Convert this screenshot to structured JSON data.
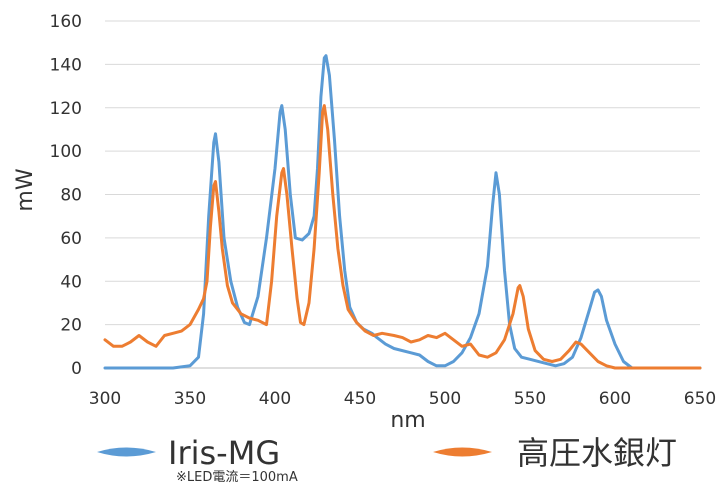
{
  "chart_data": {
    "type": "line",
    "xlabel": "nm",
    "ylabel": "mW",
    "xlim": [
      300,
      650
    ],
    "ylim": [
      0,
      160
    ],
    "x_ticks": [
      300,
      350,
      400,
      450,
      500,
      550,
      600,
      650
    ],
    "y_ticks": [
      0,
      20,
      40,
      60,
      80,
      100,
      120,
      140,
      160
    ],
    "grid": "horizontal",
    "legend_position": "bottom",
    "note": "※LED電流＝100mA",
    "series": [
      {
        "name": "Iris-MG",
        "color": "#5B9BD5",
        "points": [
          [
            300,
            0
          ],
          [
            340,
            0
          ],
          [
            350,
            1
          ],
          [
            355,
            5
          ],
          [
            358,
            25
          ],
          [
            361,
            70
          ],
          [
            364,
            104
          ],
          [
            365,
            108
          ],
          [
            367,
            95
          ],
          [
            370,
            60
          ],
          [
            374,
            40
          ],
          [
            378,
            28
          ],
          [
            382,
            21
          ],
          [
            385,
            20
          ],
          [
            390,
            33
          ],
          [
            395,
            60
          ],
          [
            400,
            92
          ],
          [
            403,
            118
          ],
          [
            404,
            121
          ],
          [
            406,
            110
          ],
          [
            409,
            80
          ],
          [
            412,
            60
          ],
          [
            416,
            59
          ],
          [
            420,
            62
          ],
          [
            423,
            70
          ],
          [
            425,
            92
          ],
          [
            427,
            125
          ],
          [
            429,
            143
          ],
          [
            430,
            144
          ],
          [
            432,
            135
          ],
          [
            435,
            105
          ],
          [
            438,
            70
          ],
          [
            441,
            45
          ],
          [
            444,
            28
          ],
          [
            448,
            21
          ],
          [
            452,
            18
          ],
          [
            457,
            16
          ],
          [
            460,
            14
          ],
          [
            465,
            11
          ],
          [
            470,
            9
          ],
          [
            480,
            7
          ],
          [
            485,
            6
          ],
          [
            490,
            3
          ],
          [
            495,
            1
          ],
          [
            500,
            1
          ],
          [
            505,
            3
          ],
          [
            510,
            7
          ],
          [
            515,
            14
          ],
          [
            520,
            25
          ],
          [
            525,
            47
          ],
          [
            528,
            75
          ],
          [
            530,
            90
          ],
          [
            532,
            80
          ],
          [
            535,
            45
          ],
          [
            538,
            20
          ],
          [
            541,
            9
          ],
          [
            545,
            5
          ],
          [
            550,
            4
          ],
          [
            560,
            2
          ],
          [
            565,
            1
          ],
          [
            570,
            2
          ],
          [
            575,
            5
          ],
          [
            580,
            14
          ],
          [
            585,
            27
          ],
          [
            588,
            35
          ],
          [
            590,
            36
          ],
          [
            592,
            33
          ],
          [
            595,
            22
          ],
          [
            600,
            11
          ],
          [
            605,
            3
          ],
          [
            610,
            0
          ],
          [
            650,
            0
          ]
        ]
      },
      {
        "name": "高圧水銀灯",
        "color": "#ED7D31",
        "points": [
          [
            300,
            13
          ],
          [
            305,
            10
          ],
          [
            310,
            10
          ],
          [
            315,
            12
          ],
          [
            320,
            15
          ],
          [
            325,
            12
          ],
          [
            330,
            10
          ],
          [
            335,
            15
          ],
          [
            340,
            16
          ],
          [
            345,
            17
          ],
          [
            350,
            20
          ],
          [
            355,
            27
          ],
          [
            358,
            32
          ],
          [
            360,
            40
          ],
          [
            362,
            65
          ],
          [
            364,
            84
          ],
          [
            365,
            86
          ],
          [
            367,
            72
          ],
          [
            369,
            55
          ],
          [
            372,
            38
          ],
          [
            375,
            30
          ],
          [
            380,
            25
          ],
          [
            385,
            23
          ],
          [
            390,
            22
          ],
          [
            395,
            20
          ],
          [
            398,
            40
          ],
          [
            401,
            70
          ],
          [
            404,
            90
          ],
          [
            405,
            92
          ],
          [
            407,
            80
          ],
          [
            410,
            55
          ],
          [
            413,
            32
          ],
          [
            415,
            21
          ],
          [
            417,
            20
          ],
          [
            420,
            30
          ],
          [
            423,
            55
          ],
          [
            426,
            90
          ],
          [
            428,
            118
          ],
          [
            429,
            121
          ],
          [
            431,
            110
          ],
          [
            434,
            80
          ],
          [
            437,
            55
          ],
          [
            440,
            38
          ],
          [
            443,
            27
          ],
          [
            448,
            21
          ],
          [
            453,
            17
          ],
          [
            458,
            15
          ],
          [
            463,
            16
          ],
          [
            470,
            15
          ],
          [
            475,
            14
          ],
          [
            480,
            12
          ],
          [
            485,
            13
          ],
          [
            490,
            15
          ],
          [
            495,
            14
          ],
          [
            500,
            16
          ],
          [
            505,
            13
          ],
          [
            510,
            10
          ],
          [
            515,
            11
          ],
          [
            520,
            6
          ],
          [
            525,
            5
          ],
          [
            530,
            7
          ],
          [
            535,
            13
          ],
          [
            540,
            25
          ],
          [
            543,
            37
          ],
          [
            544,
            38
          ],
          [
            546,
            33
          ],
          [
            549,
            18
          ],
          [
            553,
            8
          ],
          [
            558,
            4
          ],
          [
            563,
            3
          ],
          [
            568,
            4
          ],
          [
            573,
            8
          ],
          [
            577,
            12
          ],
          [
            580,
            11
          ],
          [
            585,
            7
          ],
          [
            590,
            3
          ],
          [
            595,
            1
          ],
          [
            600,
            0
          ],
          [
            650,
            0
          ]
        ]
      }
    ]
  }
}
